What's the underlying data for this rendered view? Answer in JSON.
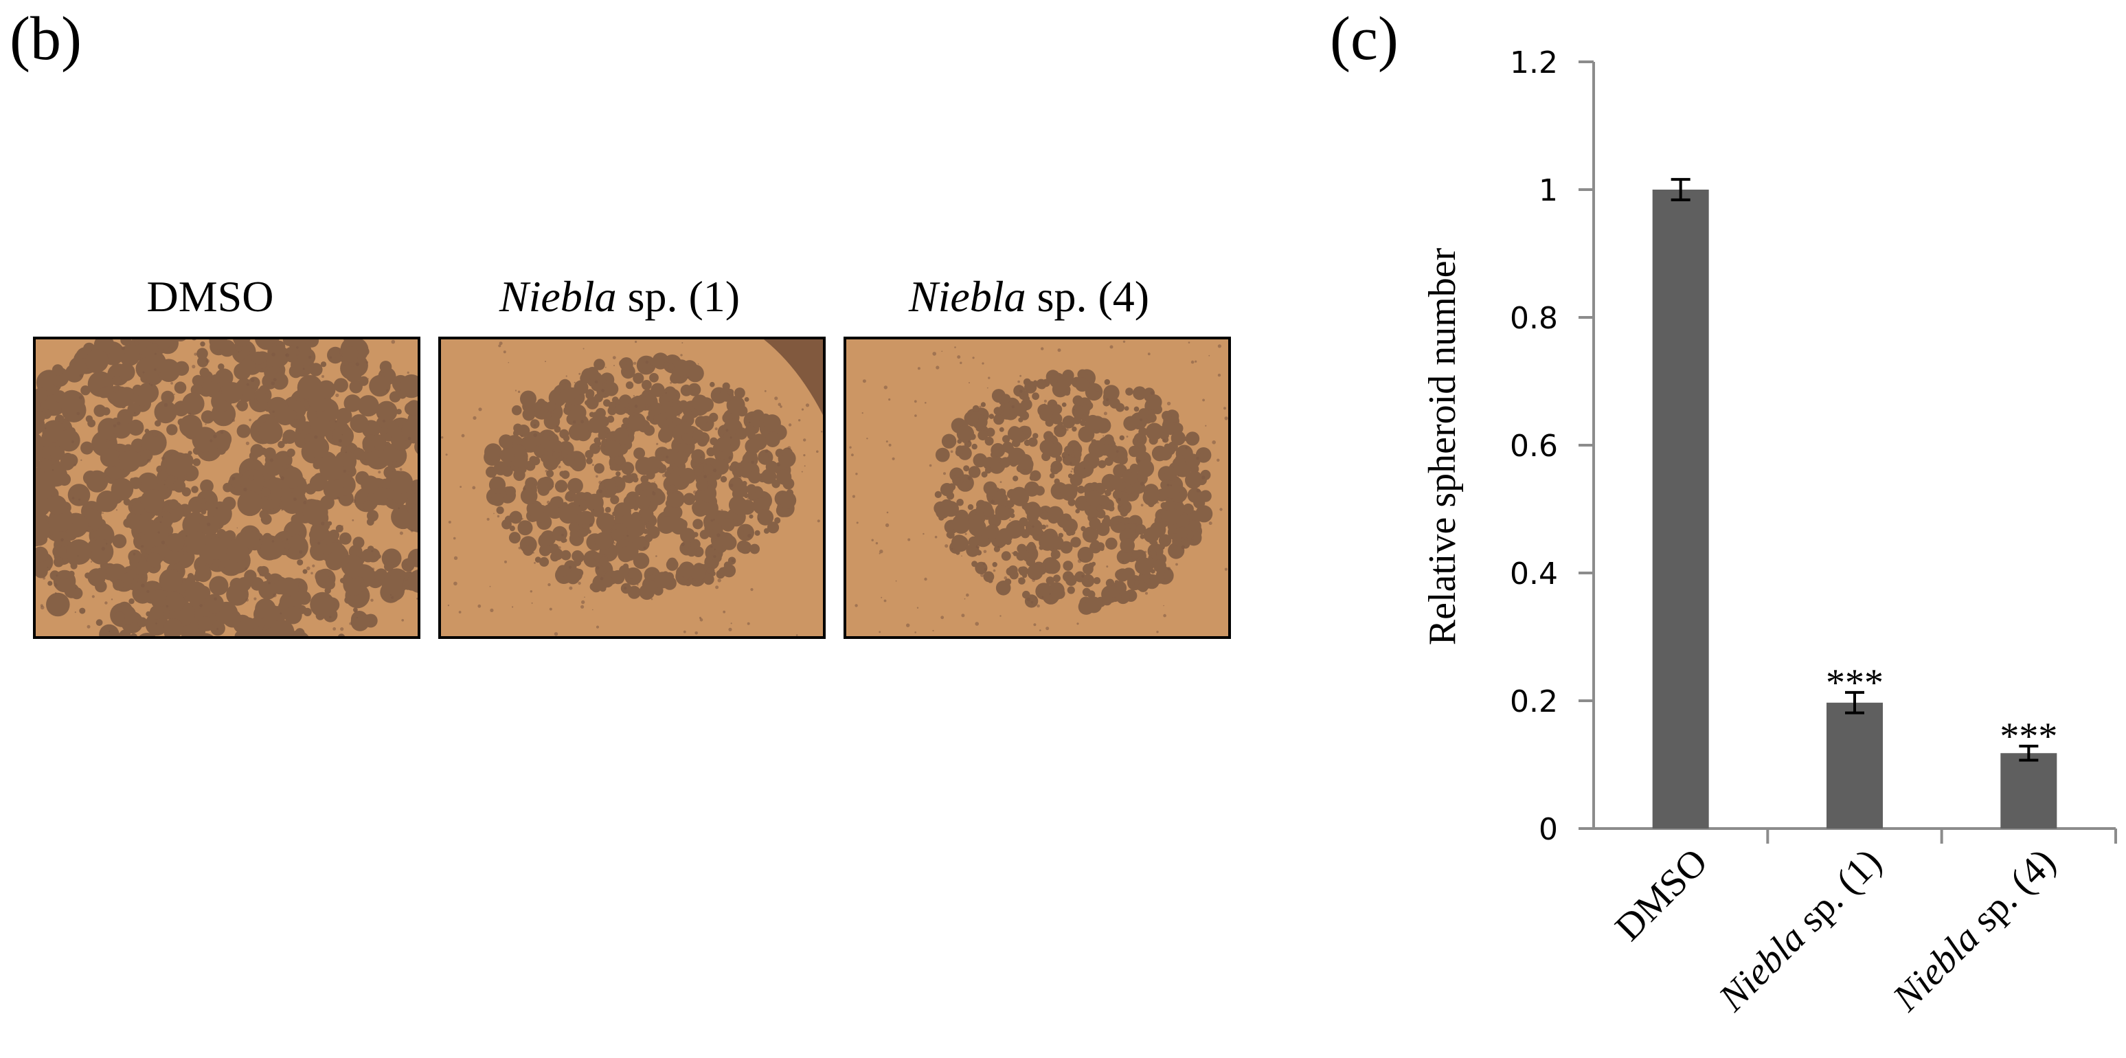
{
  "panel_b": {
    "label": "(b)",
    "images": [
      {
        "label_italic": "",
        "label_rest": "DMSO",
        "sample": "dmso"
      },
      {
        "label_italic": "Niebla",
        "label_rest": " sp. (1)",
        "sample": "niebla1"
      },
      {
        "label_italic": "Niebla",
        "label_rest": " sp. (4)",
        "sample": "niebla4"
      }
    ]
  },
  "panel_c": {
    "label": "(c)"
  },
  "colors": {
    "bar": "#5f5f5f",
    "axis": "#8c8c8c",
    "microscopy_bg": "#c8915e",
    "cells": "#7d5a43"
  },
  "chart_data": {
    "type": "bar",
    "title": "",
    "xlabel": "",
    "ylabel": "Relative spheroid number",
    "ylim": [
      0,
      1.2
    ],
    "yticks": [
      "0",
      "0.2",
      "0.4",
      "0.6",
      "0.8",
      "1",
      "1.2"
    ],
    "categories": [
      {
        "italic": "",
        "rest": "DMSO"
      },
      {
        "italic": "Niebla",
        "rest": " sp. (1)"
      },
      {
        "italic": "Niebla",
        "rest": " sp. (4)"
      }
    ],
    "series": [
      {
        "values": [
          1.0,
          0.197,
          0.118
        ],
        "errors": [
          0.016,
          0.016,
          0.011
        ],
        "annotations": [
          "",
          "***",
          "***"
        ]
      }
    ],
    "grid": false,
    "legend": "none"
  }
}
